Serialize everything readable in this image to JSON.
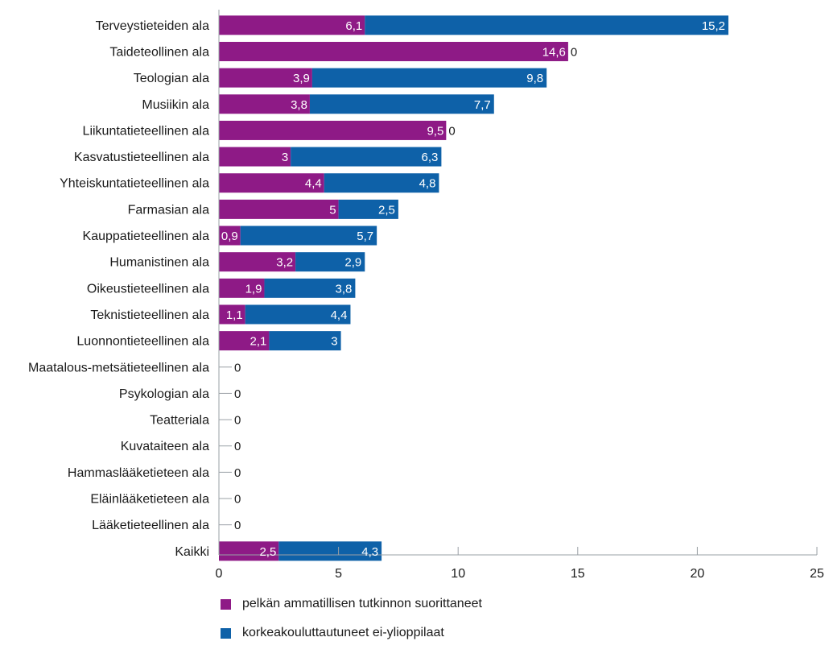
{
  "colors": {
    "series1": "#8e1a86",
    "series2": "#0e61a8",
    "axis": "#9aa0a6",
    "text": "#1a1a1a"
  },
  "legend": {
    "item1": "pelkän ammatillisen tutkinnon suorittaneet",
    "item2": "korkeakouluttautuneet ei-ylioppilaat"
  },
  "chart_data": {
    "type": "bar",
    "orientation": "horizontal",
    "stacked": true,
    "categories": [
      "Terveystieteiden ala",
      "Taideteollinen ala",
      "Teologian ala",
      "Musiikin ala",
      "Liikuntatieteellinen ala",
      "Kasvatustieteellinen ala",
      "Yhteiskuntatieteellinen ala",
      "Farmasian ala",
      "Kauppatieteellinen ala",
      "Humanistinen ala",
      "Oikeustieteellinen ala",
      "Teknistieteellinen ala",
      "Luonnontieteellinen ala",
      "Maatalous-metsätieteellinen ala",
      "Psykologian ala",
      "Teatteriala",
      "Kuvataiteen ala",
      "Hammaslääketieteen ala",
      "Eläinlääketieteen ala",
      "Lääketieteellinen ala",
      "Kaikki"
    ],
    "series": [
      {
        "name": "pelkän ammatillisen tutkinnon suorittaneet",
        "values": [
          6.1,
          14.6,
          3.9,
          3.8,
          9.5,
          3,
          4.4,
          5,
          0.9,
          3.2,
          1.9,
          1.1,
          2.1,
          null,
          null,
          null,
          null,
          null,
          null,
          null,
          2.5
        ],
        "labels": [
          "6,1",
          "14,6",
          "3,9",
          "3,8",
          "9,5",
          "3",
          "4,4",
          "5",
          "0,9",
          "3,2",
          "1,9",
          "1,1",
          "2,1",
          "",
          "",
          "",
          "",
          "",
          "",
          "",
          "2,5"
        ]
      },
      {
        "name": "korkeakouluttautuneet ei-ylioppilaat",
        "values": [
          15.2,
          0,
          9.8,
          7.7,
          0,
          6.3,
          4.8,
          2.5,
          5.7,
          2.9,
          3.8,
          4.4,
          3,
          0,
          0,
          0,
          0,
          0,
          0,
          0,
          4.3
        ],
        "labels": [
          "15,2",
          "0",
          "9,8",
          "7,7",
          "0",
          "6,3",
          "4,8",
          "2,5",
          "5,7",
          "2,9",
          "3,8",
          "4,4",
          "3",
          "0",
          "0",
          "0",
          "0",
          "0",
          "0",
          "0",
          "4,3"
        ]
      }
    ],
    "xlim": [
      0,
      25
    ],
    "xticks": [
      0,
      5,
      10,
      15,
      20,
      25
    ],
    "xtick_labels": [
      "0",
      "5",
      "10",
      "15",
      "20",
      "25"
    ],
    "grid": false,
    "legend_position": "bottom-left"
  }
}
